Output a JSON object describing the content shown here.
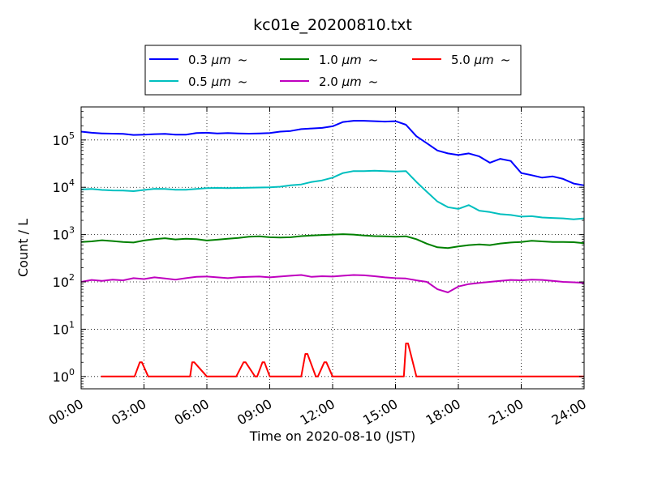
{
  "chart_data": {
    "type": "line",
    "title": "kc01e_20200810.txt",
    "xlabel": "Time on 2020-08-10 (JST)",
    "ylabel": "Count / L",
    "x_ticks": [
      "00:00",
      "03:00",
      "06:00",
      "09:00",
      "12:00",
      "15:00",
      "18:00",
      "21:00",
      "24:00"
    ],
    "y_ticks": [
      {
        "base": "10",
        "exp": "0",
        "value": 1
      },
      {
        "base": "10",
        "exp": "1",
        "value": 10
      },
      {
        "base": "10",
        "exp": "2",
        "value": 100
      },
      {
        "base": "10",
        "exp": "3",
        "value": 1000
      },
      {
        "base": "10",
        "exp": "4",
        "value": 10000
      },
      {
        "base": "10",
        "exp": "5",
        "value": 100000
      }
    ],
    "x_unit": "hours",
    "xlim": [
      0,
      24
    ],
    "ylim": [
      0.55,
      500000
    ],
    "y_scale": "log",
    "grid": true,
    "legend_position": "top",
    "series": [
      {
        "name": "0.3 μm ~",
        "label_main": "0.3 ",
        "label_unit": "μm",
        "label_tail": "~",
        "color": "#0000ff",
        "x": [
          0,
          0.5,
          1,
          1.5,
          2,
          2.5,
          3,
          3.5,
          4,
          4.5,
          5,
          5.5,
          6,
          6.5,
          7,
          7.5,
          8,
          8.5,
          9,
          9.5,
          10,
          10.5,
          11,
          11.5,
          12,
          12.5,
          13,
          13.5,
          14,
          14.5,
          15,
          15.5,
          16,
          16.5,
          17,
          17.5,
          18,
          18.5,
          19,
          19.5,
          20,
          20.5,
          21,
          21.5,
          22,
          22.5,
          23,
          23.5,
          24
        ],
        "values": [
          150000,
          142000,
          138000,
          136000,
          135000,
          128000,
          130000,
          133000,
          135000,
          130000,
          130000,
          140000,
          142000,
          138000,
          140000,
          138000,
          136000,
          138000,
          140000,
          150000,
          155000,
          170000,
          175000,
          180000,
          195000,
          240000,
          255000,
          255000,
          250000,
          245000,
          250000,
          210000,
          120000,
          85000,
          60000,
          52000,
          48000,
          52000,
          45000,
          33000,
          40000,
          36000,
          20000,
          18000,
          16000,
          17000,
          15000,
          12000,
          11000
        ]
      },
      {
        "name": "0.5 μm ~",
        "label_main": "0.5 ",
        "label_unit": "μm",
        "label_tail": "~",
        "color": "#00bfbf",
        "x": [
          0,
          0.5,
          1,
          1.5,
          2,
          2.5,
          3,
          3.5,
          4,
          4.5,
          5,
          5.5,
          6,
          6.5,
          7,
          7.5,
          8,
          8.5,
          9,
          9.5,
          10,
          10.5,
          11,
          11.5,
          12,
          12.5,
          13,
          13.5,
          14,
          14.5,
          15,
          15.5,
          16,
          16.5,
          17,
          17.5,
          18,
          18.5,
          19,
          19.5,
          20,
          20.5,
          21,
          21.5,
          22,
          22.5,
          23,
          23.5,
          24
        ],
        "values": [
          9000,
          9200,
          8800,
          8600,
          8500,
          8300,
          8800,
          9300,
          9200,
          8900,
          8900,
          9200,
          9600,
          9700,
          9600,
          9700,
          9800,
          9900,
          10000,
          10300,
          11000,
          11500,
          13000,
          14000,
          16000,
          20000,
          22000,
          22000,
          22500,
          22000,
          21500,
          22000,
          13000,
          8000,
          5000,
          3800,
          3500,
          4200,
          3200,
          3000,
          2700,
          2600,
          2400,
          2450,
          2300,
          2250,
          2200,
          2100,
          2200
        ]
      },
      {
        "name": "1.0 μm ~",
        "label_main": "1.0 ",
        "label_unit": "μm",
        "label_tail": "~",
        "color": "#008000",
        "x": [
          0,
          0.5,
          1,
          1.5,
          2,
          2.5,
          3,
          3.5,
          4,
          4.5,
          5,
          5.5,
          6,
          6.5,
          7,
          7.5,
          8,
          8.5,
          9,
          9.5,
          10,
          10.5,
          11,
          11.5,
          12,
          12.5,
          13,
          13.5,
          14,
          14.5,
          15,
          15.5,
          16,
          16.5,
          17,
          17.5,
          18,
          18.5,
          19,
          19.5,
          20,
          20.5,
          21,
          21.5,
          22,
          22.5,
          23,
          23.5,
          24
        ],
        "values": [
          700,
          720,
          760,
          730,
          700,
          680,
          750,
          800,
          840,
          790,
          820,
          800,
          750,
          780,
          820,
          850,
          900,
          920,
          880,
          870,
          880,
          930,
          960,
          980,
          1000,
          1020,
          1000,
          960,
          930,
          920,
          900,
          920,
          800,
          640,
          540,
          520,
          560,
          600,
          620,
          600,
          650,
          680,
          700,
          740,
          720,
          700,
          700,
          690,
          660
        ]
      },
      {
        "name": "2.0 μm ~",
        "label_main": "2.0 ",
        "label_unit": "μm",
        "label_tail": "~",
        "color": "#bf00bf",
        "x": [
          0,
          0.5,
          1,
          1.5,
          2,
          2.5,
          3,
          3.5,
          4,
          4.5,
          5,
          5.5,
          6,
          6.5,
          7,
          7.5,
          8,
          8.5,
          9,
          9.5,
          10,
          10.5,
          11,
          11.5,
          12,
          12.5,
          13,
          13.5,
          14,
          14.5,
          15,
          15.5,
          16,
          16.5,
          17,
          17.5,
          18,
          18.5,
          19,
          19.5,
          20,
          20.5,
          21,
          21.5,
          22,
          22.5,
          23,
          23.5,
          24
        ],
        "values": [
          100,
          110,
          105,
          112,
          108,
          120,
          115,
          125,
          118,
          112,
          120,
          128,
          130,
          125,
          120,
          126,
          128,
          130,
          125,
          130,
          135,
          140,
          128,
          132,
          130,
          135,
          140,
          138,
          132,
          125,
          120,
          118,
          108,
          100,
          70,
          60,
          80,
          90,
          95,
          100,
          105,
          110,
          108,
          112,
          110,
          105,
          100,
          98,
          95
        ]
      },
      {
        "name": "5.0 μm ~",
        "label_main": "5.0 ",
        "label_unit": "μm",
        "label_tail": "~",
        "color": "#ff0000",
        "x": [
          0.95,
          1.0,
          1.05,
          1.45,
          1.5,
          1.55,
          2.45,
          2.5,
          2.55,
          2.8,
          2.85,
          2.9,
          3.2,
          3.25,
          3.3,
          3.7,
          3.75,
          3.8,
          4.3,
          4.35,
          4.4,
          5.1,
          5.15,
          5.2,
          5.3,
          5.35,
          5.4,
          6.0,
          6.05,
          6.1,
          6.55,
          6.6,
          6.65,
          7.3,
          7.35,
          7.4,
          7.75,
          7.8,
          7.85,
          8.3,
          8.35,
          8.4,
          8.65,
          8.7,
          8.75,
          9.0,
          9.05,
          9.1,
          9.5,
          9.55,
          9.6,
          10.0,
          10.05,
          10.1,
          10.4,
          10.45,
          10.5,
          10.7,
          10.75,
          10.8,
          11.2,
          11.25,
          11.3,
          11.6,
          11.65,
          11.7,
          12.0,
          12.05,
          12.1,
          12.7,
          12.75,
          12.8,
          13.5,
          13.55,
          13.6,
          14.0,
          14.05,
          14.1,
          14.3,
          14.35,
          14.4,
          14.7,
          14.75,
          14.8,
          15.3,
          15.35,
          15.4,
          15.5,
          15.55,
          15.6,
          16.0,
          16.05,
          16.1,
          16.6,
          16.65,
          16.7,
          17.3,
          17.35,
          17.4,
          18.0,
          18.05,
          18.1,
          18.4,
          18.45,
          18.5,
          18.8,
          18.85,
          18.9,
          19.4,
          19.45,
          19.5,
          19.7,
          19.75,
          19.8,
          20.3,
          20.35,
          20.4,
          21.0,
          21.05,
          21.1,
          21.3,
          21.35,
          21.4,
          22.0,
          22.05,
          22.1,
          22.4,
          22.45,
          22.5,
          23.1,
          23.15,
          23.2,
          23.6,
          23.65,
          23.7,
          24.0
        ],
        "values": [
          1,
          1,
          1,
          1,
          1,
          1,
          1,
          1,
          1,
          2,
          2,
          2,
          1,
          1,
          1,
          1,
          1,
          1,
          1,
          1,
          1,
          1,
          1,
          1,
          2,
          2,
          2,
          1,
          1,
          1,
          1,
          1,
          1,
          1,
          1,
          1,
          2,
          2,
          2,
          1,
          1,
          1,
          2,
          2,
          2,
          1,
          1,
          1,
          1,
          1,
          1,
          1,
          1,
          1,
          1,
          1,
          1,
          3,
          3,
          3,
          1,
          1,
          1,
          2,
          2,
          2,
          1,
          1,
          1,
          1,
          1,
          1,
          1,
          1,
          1,
          1,
          1,
          1,
          1,
          1,
          1,
          1,
          1,
          1,
          1,
          1,
          1,
          5,
          5,
          5,
          1,
          1,
          1,
          1,
          1,
          1,
          1,
          1,
          1,
          1,
          1,
          1,
          1,
          1,
          1,
          1,
          1,
          1,
          1,
          1,
          1,
          1,
          1,
          1,
          1,
          1,
          1,
          1,
          1,
          1,
          1,
          1,
          1,
          1,
          1,
          1,
          1,
          1,
          1,
          1,
          1,
          1,
          1,
          1,
          1,
          1
        ]
      }
    ]
  }
}
